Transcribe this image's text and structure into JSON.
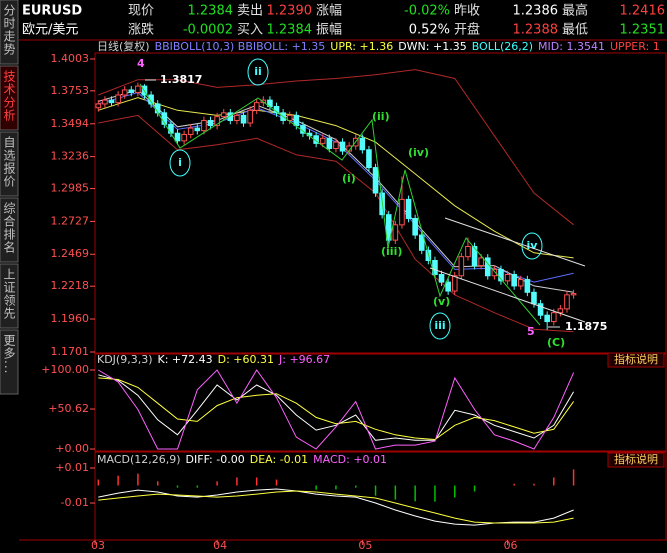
{
  "tabs": [
    "分时走势",
    "技术分析",
    "自选报价",
    "综合排名",
    "上证领先",
    "更多..."
  ],
  "quote": {
    "symbol": "EURUSD",
    "name": "欧元/美元",
    "rows": [
      [
        {
          "label": "现价",
          "value": "1.2384",
          "color": "#20e020"
        },
        {
          "label": "卖出",
          "value": "1.2390",
          "color": "#ff4040"
        },
        {
          "label": "涨幅",
          "value": "-0.02%",
          "color": "#20e020"
        },
        {
          "label": "昨收",
          "value": "1.2386",
          "color": "#ffffff"
        },
        {
          "label": "最高",
          "value": "1.2416",
          "color": "#ff4040"
        }
      ],
      [
        {
          "label": "涨跌",
          "value": "-0.0002",
          "color": "#20e020"
        },
        {
          "label": "买入",
          "value": "1.2384",
          "color": "#20e020"
        },
        {
          "label": "振幅",
          "value": "0.52%",
          "color": "#ffffff"
        },
        {
          "label": "开盘",
          "value": "1.2388",
          "color": "#ff4040"
        },
        {
          "label": "最低",
          "value": "1.2351",
          "color": "#20e020"
        }
      ]
    ]
  },
  "chart_data": [
    {
      "type": "candlestick",
      "header": [
        {
          "text": "日线(复权)",
          "color": "#d0d0d0"
        },
        {
          "text": "BBIBOLL(10,3) BBIBOLL: +1.35",
          "color": "#8080ff"
        },
        {
          "text": "UPR: +1.36",
          "color": "#ffff40"
        },
        {
          "text": "DWN: +1.35",
          "color": "#ffffff"
        },
        {
          "text": "BOLL(26,2)",
          "color": "#40ffff"
        },
        {
          "text": "MID: 1.3541",
          "color": "#c080ff"
        },
        {
          "text": "UPPER: 1",
          "color": "#ff4040"
        }
      ],
      "xlim": [
        -0.5,
        85.85
      ],
      "xticks": [
        {
          "value": -0.5,
          "label": "03"
        },
        {
          "value": 18,
          "label": "04"
        },
        {
          "value": 40,
          "label": "05"
        },
        {
          "value": 62,
          "label": "06"
        }
      ],
      "ylim": [
        1.1701,
        1.4003
      ],
      "yticks": [
        1.4003,
        1.3753,
        1.3494,
        1.3236,
        1.2985,
        1.2727,
        1.2469,
        1.2218,
        {
          "value": 1.196,
          "label": "1.1960"
        },
        1.1701
      ],
      "up_color": "#ff5050",
      "down_color": "#54fcfc",
      "open": [
        1.362,
        1.365,
        1.368,
        1.366,
        1.372,
        1.376,
        1.374,
        1.379,
        1.372,
        1.365,
        1.358,
        1.349,
        1.342,
        1.336,
        1.341,
        1.346,
        1.344,
        1.352,
        1.348,
        1.355,
        1.358,
        1.352,
        1.356,
        1.35,
        1.36,
        1.366,
        1.368,
        1.363,
        1.358,
        1.352,
        1.356,
        1.348,
        1.342,
        1.34,
        1.334,
        1.338,
        1.33,
        1.335,
        1.328,
        1.332,
        1.338,
        1.329,
        1.315,
        1.295,
        1.278,
        1.258,
        1.27,
        1.29,
        1.275,
        1.262,
        1.25,
        1.242,
        1.231,
        1.225,
        1.218,
        1.23,
        1.245,
        1.253,
        1.238,
        1.244,
        1.23,
        1.235,
        1.226,
        1.231,
        1.222,
        1.227,
        1.217,
        1.208,
        1.199,
        1.194,
        1.201,
        1.204,
        1.215
      ],
      "high": [
        1.368,
        1.371,
        1.371,
        1.375,
        1.379,
        1.379,
        1.3817,
        1.3805,
        1.375,
        1.368,
        1.361,
        1.352,
        1.345,
        1.344,
        1.349,
        1.349,
        1.355,
        1.355,
        1.358,
        1.361,
        1.361,
        1.359,
        1.359,
        1.363,
        1.369,
        1.371,
        1.371,
        1.366,
        1.361,
        1.359,
        1.359,
        1.351,
        1.345,
        1.343,
        1.341,
        1.341,
        1.338,
        1.338,
        1.335,
        1.341,
        1.341,
        1.332,
        1.318,
        1.298,
        1.281,
        1.273,
        1.308,
        1.293,
        1.278,
        1.265,
        1.253,
        1.245,
        1.234,
        1.228,
        1.233,
        1.248,
        1.26,
        1.256,
        1.247,
        1.247,
        1.238,
        1.238,
        1.234,
        1.234,
        1.23,
        1.23,
        1.22,
        1.211,
        1.202,
        1.204,
        1.207,
        1.218,
        1.219
      ],
      "low": [
        1.359,
        1.362,
        1.363,
        1.363,
        1.369,
        1.371,
        1.371,
        1.369,
        1.362,
        1.355,
        1.346,
        1.339,
        1.333,
        1.333,
        1.338,
        1.341,
        1.341,
        1.345,
        1.345,
        1.352,
        1.349,
        1.349,
        1.347,
        1.347,
        1.357,
        1.363,
        1.36,
        1.355,
        1.349,
        1.349,
        1.345,
        1.339,
        1.337,
        1.331,
        1.331,
        1.327,
        1.327,
        1.325,
        1.325,
        1.329,
        1.326,
        1.312,
        1.292,
        1.275,
        1.255,
        1.255,
        1.267,
        1.272,
        1.259,
        1.247,
        1.239,
        1.228,
        1.222,
        1.215,
        1.215,
        1.227,
        1.242,
        1.235,
        1.235,
        1.227,
        1.227,
        1.223,
        1.223,
        1.219,
        1.219,
        1.214,
        1.205,
        1.196,
        1.1875,
        1.191,
        1.198,
        1.201,
        1.212
      ],
      "close": [
        1.365,
        1.368,
        1.366,
        1.372,
        1.376,
        1.374,
        1.379,
        1.372,
        1.365,
        1.358,
        1.349,
        1.342,
        1.336,
        1.341,
        1.346,
        1.344,
        1.352,
        1.348,
        1.355,
        1.358,
        1.352,
        1.356,
        1.35,
        1.36,
        1.366,
        1.368,
        1.363,
        1.358,
        1.352,
        1.356,
        1.348,
        1.342,
        1.34,
        1.334,
        1.338,
        1.33,
        1.335,
        1.328,
        1.332,
        1.338,
        1.329,
        1.315,
        1.295,
        1.278,
        1.258,
        1.27,
        1.29,
        1.275,
        1.262,
        1.25,
        1.242,
        1.231,
        1.225,
        1.218,
        1.23,
        1.245,
        1.253,
        1.238,
        1.244,
        1.23,
        1.235,
        1.226,
        1.231,
        1.222,
        1.227,
        1.217,
        1.208,
        1.199,
        1.194,
        1.201,
        1.204,
        1.215,
        1.216
      ],
      "lines": [
        {
          "color": "#b02828",
          "x": [
            0,
            6,
            12,
            18,
            24,
            30,
            36,
            42,
            48,
            54,
            60,
            66,
            72
          ],
          "values": [
            1.372,
            1.384,
            1.384,
            1.378,
            1.38,
            1.383,
            1.385,
            1.388,
            1.392,
            1.385,
            1.34,
            1.295,
            1.27
          ]
        },
        {
          "color": "#b02828",
          "x": [
            0,
            6,
            12,
            18,
            24,
            30,
            36,
            42,
            48,
            54,
            60,
            66,
            72
          ],
          "values": [
            1.35,
            1.356,
            1.329,
            1.333,
            1.338,
            1.325,
            1.32,
            1.295,
            1.243,
            1.215,
            1.201,
            1.188,
            1.186
          ]
        },
        {
          "color": "#e8e850",
          "x": [
            0,
            6,
            12,
            18,
            24,
            30,
            36,
            42,
            48,
            54,
            60,
            66,
            72
          ],
          "values": [
            1.36,
            1.37,
            1.36,
            1.356,
            1.36,
            1.356,
            1.348,
            1.335,
            1.31,
            1.285,
            1.265,
            1.248,
            1.244
          ]
        },
        {
          "color": "#5a6cff",
          "x": [
            0,
            6,
            12,
            18,
            24,
            30,
            36,
            42,
            48,
            54,
            60,
            66,
            72
          ],
          "values": [
            1.365,
            1.374,
            1.345,
            1.35,
            1.362,
            1.35,
            1.335,
            1.305,
            1.27,
            1.235,
            1.236,
            1.225,
            1.232
          ]
        },
        {
          "color": "#d0d0d0",
          "x": [
            0,
            6,
            12,
            18,
            24,
            30,
            36,
            42,
            48,
            54,
            60,
            66,
            72
          ],
          "values": [
            1.367,
            1.376,
            1.347,
            1.352,
            1.364,
            1.352,
            1.337,
            1.307,
            1.272,
            1.237,
            1.238,
            1.222,
            1.217
          ]
        }
      ],
      "annotations": [
        "4",
        "1.3817",
        "ii",
        "i",
        "(ii)",
        "(i)",
        "(iv)",
        "(iii)",
        "(v)",
        "iii",
        "iv",
        "5",
        "(C)",
        "1.1875"
      ]
    },
    {
      "type": "line",
      "header": [
        {
          "text": "KDJ(9,3,3)",
          "color": "#d0d0d0"
        },
        {
          "text": "K: +72.43",
          "color": "#ffffff"
        },
        {
          "text": "D: +60.31",
          "color": "#ffff40"
        },
        {
          "text": "J: +96.67",
          "color": "#ff60ff"
        }
      ],
      "button": "指标说明",
      "xlim": [
        -0.5,
        85.85
      ],
      "ylim": [
        -2.5,
        119
      ],
      "yticks": [
        {
          "value": 100,
          "label": "+100.00"
        },
        {
          "value": 50.62,
          "label": "+50.62"
        },
        {
          "value": 0,
          "label": "+0.00"
        }
      ],
      "lines": [
        {
          "color": "#ffffff",
          "x": [
            0,
            3,
            6,
            9,
            12,
            15,
            18,
            21,
            24,
            27,
            30,
            33,
            36,
            39,
            42,
            45,
            48,
            51,
            54,
            57,
            60,
            63,
            66,
            69,
            72
          ],
          "values": [
            94,
            87,
            68,
            37,
            18,
            49,
            81,
            62,
            81,
            68,
            43,
            24,
            30,
            43,
            11,
            14,
            11,
            11,
            49,
            43,
            30,
            22,
            14,
            30,
            72.43
          ]
        },
        {
          "color": "#ffff40",
          "x": [
            0,
            3,
            6,
            9,
            12,
            15,
            18,
            21,
            24,
            27,
            30,
            33,
            36,
            39,
            42,
            45,
            48,
            51,
            54,
            57,
            60,
            63,
            66,
            69,
            72
          ],
          "values": [
            90,
            88,
            78,
            58,
            38,
            35,
            55,
            65,
            68,
            70,
            58,
            40,
            32,
            35,
            25,
            18,
            14,
            12,
            30,
            40,
            36,
            28,
            20,
            25,
            60.31
          ]
        },
        {
          "color": "#ff60ff",
          "x": [
            0,
            3,
            6,
            9,
            12,
            15,
            18,
            21,
            24,
            27,
            30,
            33,
            36,
            39,
            42,
            45,
            48,
            51,
            54,
            57,
            60,
            63,
            66,
            69,
            72
          ],
          "values": [
            100,
            85,
            50,
            0,
            0,
            75,
            100,
            58,
            100,
            65,
            15,
            0,
            28,
            60,
            0,
            5,
            5,
            10,
            90,
            50,
            18,
            10,
            0,
            40,
            96.67
          ]
        }
      ]
    },
    {
      "type": "macd",
      "header": [
        {
          "text": "MACD(12,26,9)",
          "color": "#d0d0d0"
        },
        {
          "text": "DIFF: -0.00",
          "color": "#ffffff"
        },
        {
          "text": "DEA: -0.01",
          "color": "#ffff40"
        },
        {
          "text": "MACD: +0.01",
          "color": "#ff60ff"
        }
      ],
      "button": "指标说明",
      "xlim": [
        -0.5,
        85.85
      ],
      "ylim": [
        -0.0311,
        0.018
      ],
      "yticks": [
        {
          "value": 0.01,
          "label": "+0.01"
        },
        {
          "value": -0.01,
          "label": "-0.01"
        }
      ],
      "up_color": "#ff3030",
      "down_color": "#00c000",
      "bars": {
        "x": [
          0,
          3,
          6,
          9,
          12,
          15,
          18,
          21,
          24,
          27,
          30,
          33,
          36,
          39,
          42,
          45,
          48,
          51,
          54,
          57,
          60,
          63,
          66,
          69,
          72
        ],
        "values": [
          0.0034,
          0.0056,
          0.0068,
          0.0024,
          -0.0012,
          -0.0012,
          0.0024,
          0.0046,
          0.0046,
          0.0034,
          0,
          -0.0024,
          -0.0022,
          -0.0012,
          -0.0058,
          -0.008,
          -0.009,
          -0.0092,
          -0.0068,
          -0.0034,
          0,
          0.001,
          0.001,
          0.0046,
          0.0092
        ]
      },
      "lines": [
        {
          "color": "#ffffff",
          "x": [
            0,
            3,
            6,
            9,
            12,
            15,
            18,
            21,
            24,
            27,
            30,
            33,
            36,
            39,
            42,
            45,
            48,
            51,
            54,
            57,
            60,
            63,
            66,
            69,
            72
          ],
          "values": [
            -0.0066,
            -0.0043,
            -0.0026,
            -0.0037,
            -0.006,
            -0.0066,
            -0.0054,
            -0.0037,
            -0.0026,
            -0.002,
            -0.0031,
            -0.0049,
            -0.006,
            -0.0066,
            -0.01,
            -0.014,
            -0.0174,
            -0.0203,
            -0.022,
            -0.0226,
            -0.0214,
            -0.0209,
            -0.0209,
            -0.0186,
            -0.014
          ]
        },
        {
          "color": "#ffff40",
          "x": [
            0,
            3,
            6,
            9,
            12,
            15,
            18,
            21,
            24,
            27,
            30,
            33,
            36,
            39,
            42,
            45,
            48,
            51,
            54,
            57,
            60,
            63,
            66,
            69,
            72
          ],
          "values": [
            -0.0083,
            -0.0071,
            -0.006,
            -0.0049,
            -0.0054,
            -0.006,
            -0.0066,
            -0.006,
            -0.0049,
            -0.0037,
            -0.0031,
            -0.0037,
            -0.0049,
            -0.006,
            -0.0071,
            -0.01,
            -0.0129,
            -0.0157,
            -0.0186,
            -0.0209,
            -0.0214,
            -0.0214,
            -0.0214,
            -0.0209,
            -0.0186
          ]
        }
      ]
    }
  ]
}
